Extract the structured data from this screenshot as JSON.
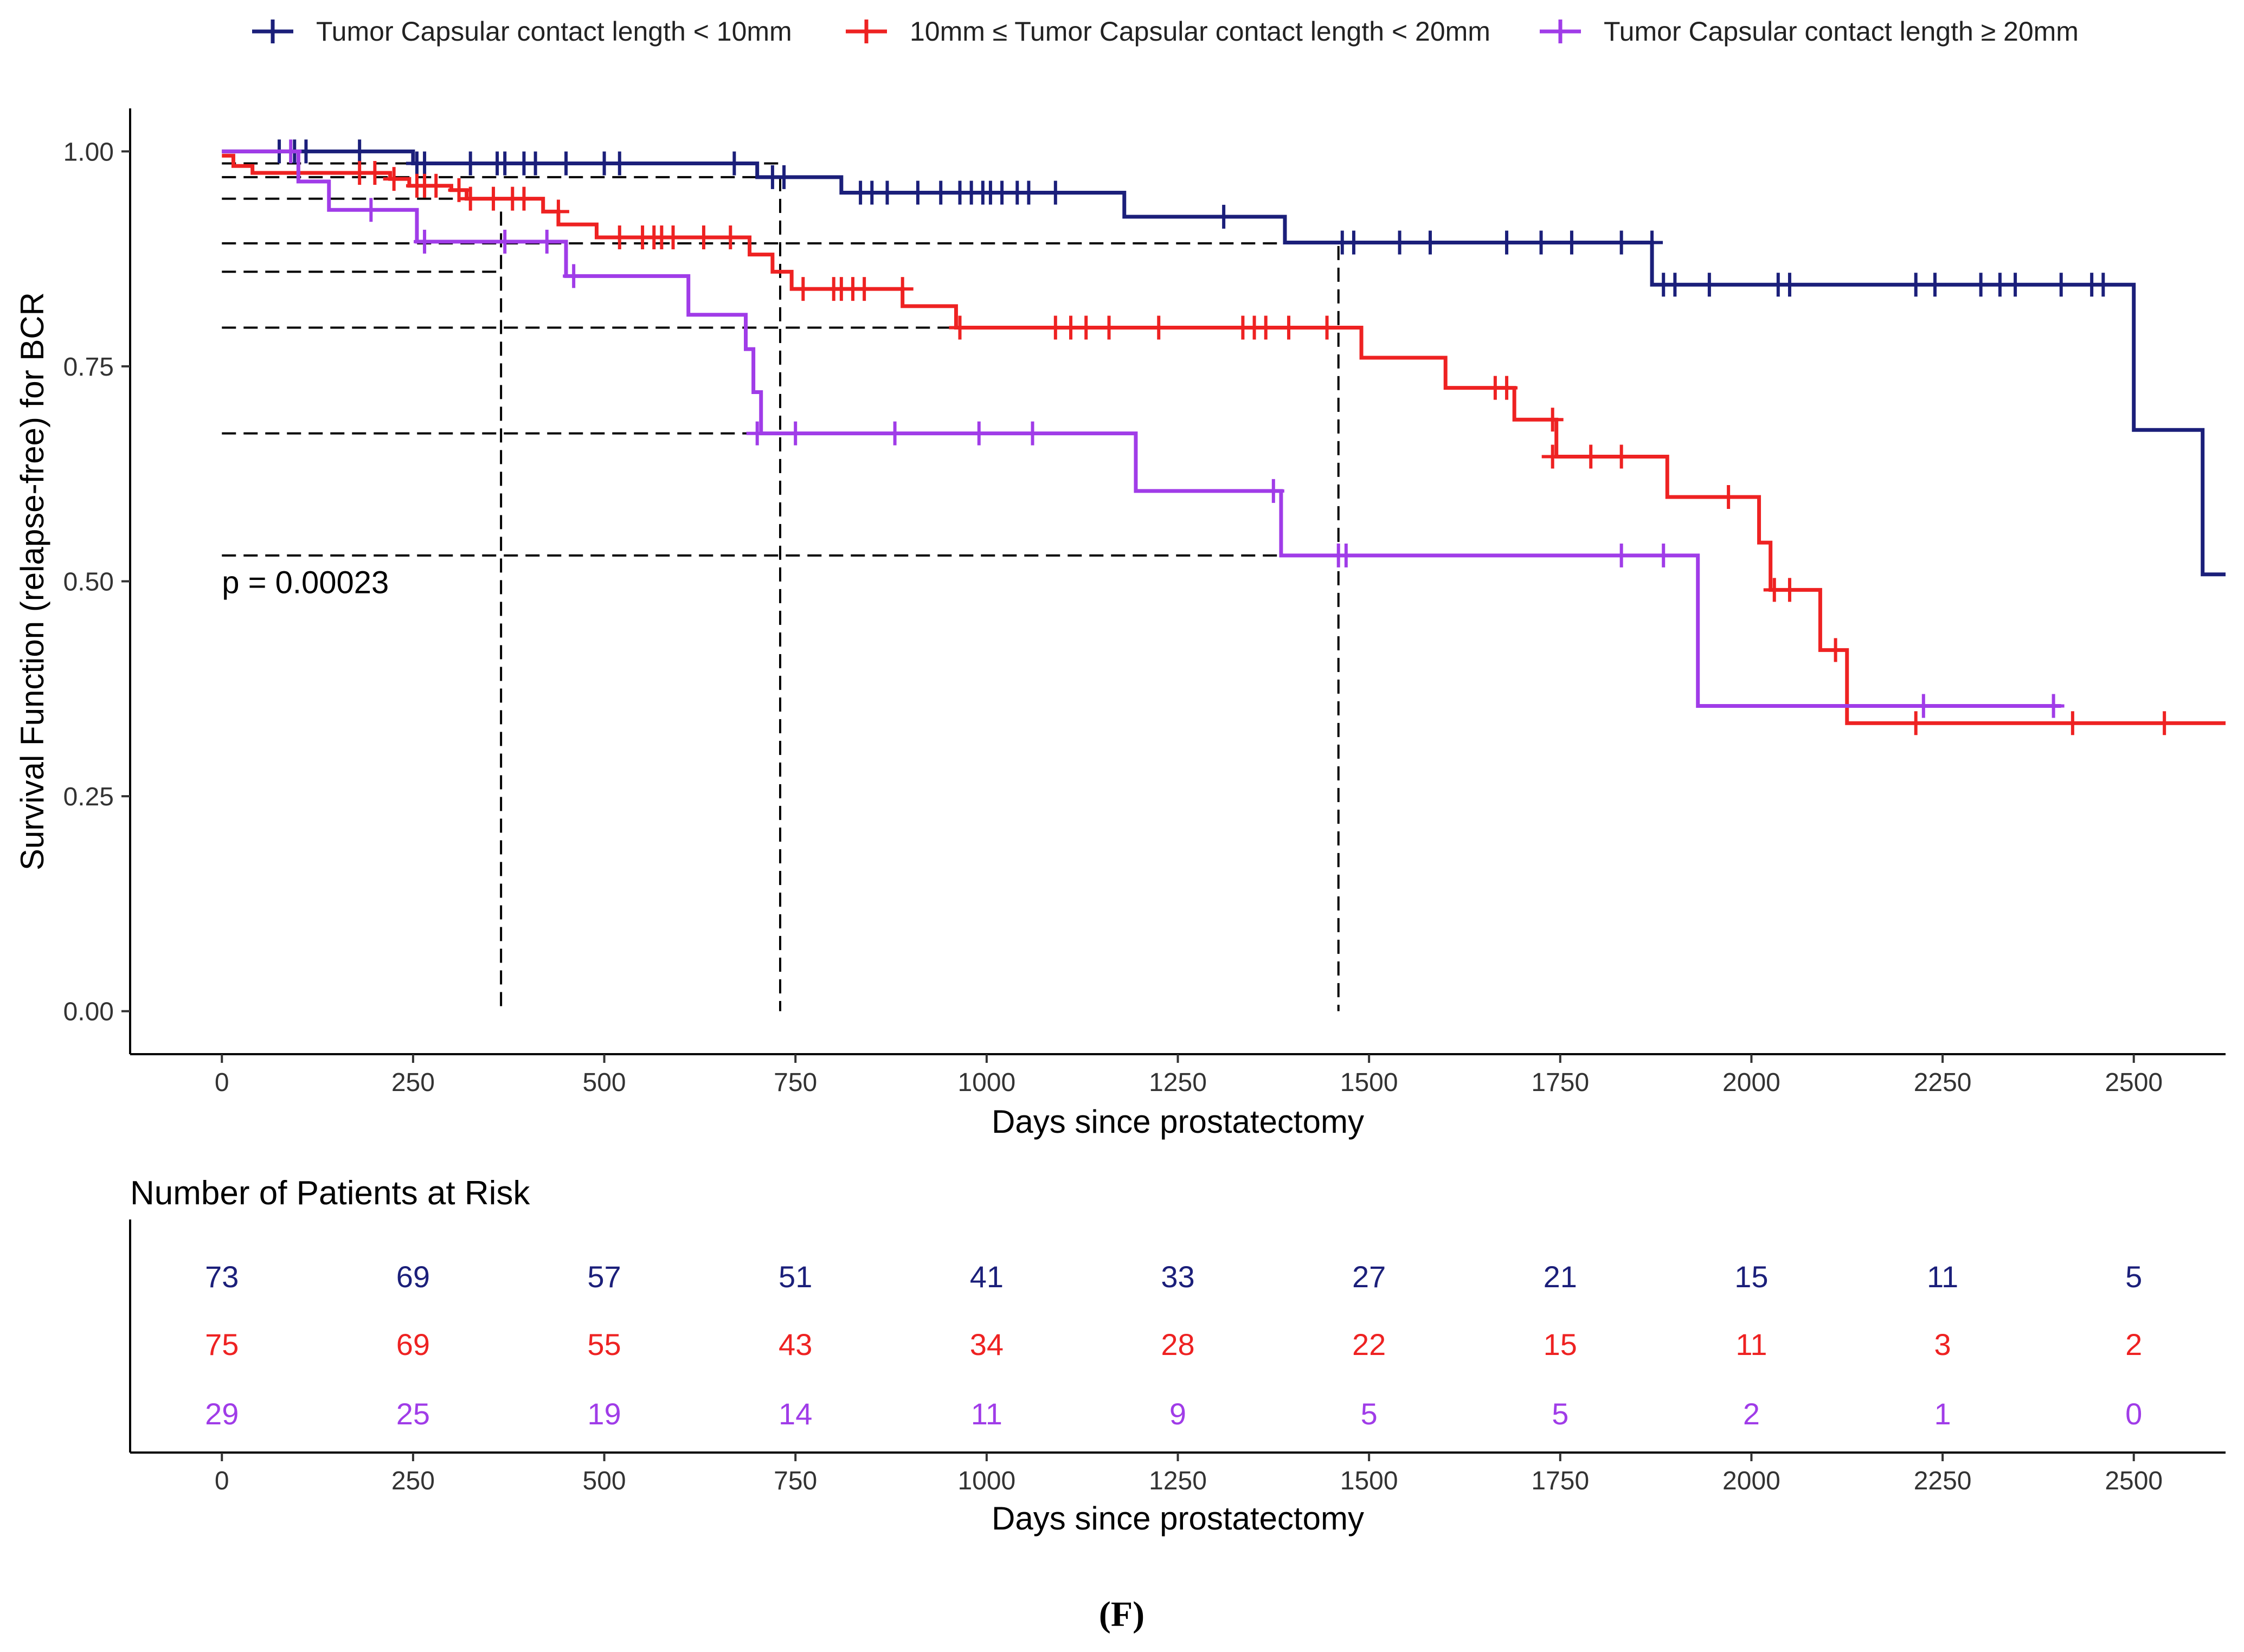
{
  "chart_data": [
    {
      "type": "line",
      "subtype": "kaplan-meier",
      "title": "",
      "xlabel": "Days since prostatectomy",
      "ylabel": "Survival Function (relapse-free) for BCR",
      "xlim": [
        -120,
        2620
      ],
      "ylim": [
        -0.05,
        1.05
      ],
      "x_ticks": [
        0,
        250,
        500,
        750,
        1000,
        1250,
        1500,
        1750,
        2000,
        2250,
        2500
      ],
      "y_ticks": [
        0.0,
        0.25,
        0.5,
        0.75,
        1.0
      ],
      "y_tick_labels": [
        "0.00",
        "0.25",
        "0.50",
        "0.75",
        "1.00"
      ],
      "grid": false,
      "legend_position": "top",
      "annotation": "p = 0.00023",
      "reference_lines": {
        "vertical_x": [
          365,
          730,
          1460
        ],
        "horizontal_y": [
          0.986,
          0.97,
          0.945,
          0.893,
          0.86,
          0.795,
          0.672,
          0.53
        ]
      },
      "series": [
        {
          "name": "Tumor Capsular contact length < 10mm",
          "color": "#1b1f7a",
          "steps": [
            [
              0,
              1.0
            ],
            [
              250,
              0.986
            ],
            [
              700,
              0.97
            ],
            [
              810,
              0.952
            ],
            [
              1180,
              0.924
            ],
            [
              1390,
              0.894
            ],
            [
              1870,
              0.845
            ],
            [
              2500,
              0.676
            ],
            [
              2590,
              0.508
            ],
            [
              2620,
              0.508
            ]
          ],
          "censored": [
            [
              75,
              1.0
            ],
            [
              95,
              1.0
            ],
            [
              110,
              1.0
            ],
            [
              180,
              1.0
            ],
            [
              255,
              0.986
            ],
            [
              265,
              0.986
            ],
            [
              325,
              0.986
            ],
            [
              360,
              0.986
            ],
            [
              370,
              0.986
            ],
            [
              395,
              0.986
            ],
            [
              410,
              0.986
            ],
            [
              450,
              0.986
            ],
            [
              500,
              0.986
            ],
            [
              520,
              0.986
            ],
            [
              670,
              0.986
            ],
            [
              720,
              0.97
            ],
            [
              735,
              0.97
            ],
            [
              835,
              0.952
            ],
            [
              850,
              0.952
            ],
            [
              870,
              0.952
            ],
            [
              910,
              0.952
            ],
            [
              940,
              0.952
            ],
            [
              965,
              0.952
            ],
            [
              980,
              0.952
            ],
            [
              995,
              0.952
            ],
            [
              1005,
              0.952
            ],
            [
              1020,
              0.952
            ],
            [
              1040,
              0.952
            ],
            [
              1055,
              0.952
            ],
            [
              1090,
              0.952
            ],
            [
              1310,
              0.924
            ],
            [
              1465,
              0.894
            ],
            [
              1480,
              0.894
            ],
            [
              1540,
              0.894
            ],
            [
              1580,
              0.894
            ],
            [
              1680,
              0.894
            ],
            [
              1725,
              0.894
            ],
            [
              1765,
              0.894
            ],
            [
              1830,
              0.894
            ],
            [
              1870,
              0.894
            ],
            [
              1885,
              0.845
            ],
            [
              1900,
              0.845
            ],
            [
              1945,
              0.845
            ],
            [
              2035,
              0.845
            ],
            [
              2050,
              0.845
            ],
            [
              2215,
              0.845
            ],
            [
              2240,
              0.845
            ],
            [
              2300,
              0.845
            ],
            [
              2325,
              0.845
            ],
            [
              2345,
              0.845
            ],
            [
              2405,
              0.845
            ],
            [
              2445,
              0.845
            ],
            [
              2460,
              0.845
            ]
          ]
        },
        {
          "name": "10mm ≤ Tumor Capsular contact length < 20mm",
          "color": "#ee2222",
          "steps": [
            [
              0,
              0.995
            ],
            [
              15,
              0.983
            ],
            [
              40,
              0.975
            ],
            [
              220,
              0.968
            ],
            [
              245,
              0.96
            ],
            [
              300,
              0.955
            ],
            [
              320,
              0.945
            ],
            [
              420,
              0.93
            ],
            [
              440,
              0.915
            ],
            [
              490,
              0.9
            ],
            [
              690,
              0.88
            ],
            [
              720,
              0.86
            ],
            [
              745,
              0.84
            ],
            [
              890,
              0.82
            ],
            [
              960,
              0.795
            ],
            [
              1490,
              0.76
            ],
            [
              1600,
              0.725
            ],
            [
              1690,
              0.688
            ],
            [
              1745,
              0.645
            ],
            [
              1890,
              0.598
            ],
            [
              2010,
              0.545
            ],
            [
              2025,
              0.49
            ],
            [
              2090,
              0.42
            ],
            [
              2125,
              0.335
            ],
            [
              2620,
              0.335
            ]
          ],
          "censored": [
            [
              180,
              0.975
            ],
            [
              200,
              0.975
            ],
            [
              225,
              0.968
            ],
            [
              255,
              0.96
            ],
            [
              265,
              0.96
            ],
            [
              280,
              0.96
            ],
            [
              310,
              0.955
            ],
            [
              325,
              0.945
            ],
            [
              355,
              0.945
            ],
            [
              380,
              0.945
            ],
            [
              395,
              0.945
            ],
            [
              440,
              0.93
            ],
            [
              520,
              0.9
            ],
            [
              550,
              0.9
            ],
            [
              565,
              0.9
            ],
            [
              575,
              0.9
            ],
            [
              590,
              0.9
            ],
            [
              630,
              0.9
            ],
            [
              665,
              0.9
            ],
            [
              760,
              0.84
            ],
            [
              800,
              0.84
            ],
            [
              810,
              0.84
            ],
            [
              825,
              0.84
            ],
            [
              840,
              0.84
            ],
            [
              890,
              0.84
            ],
            [
              965,
              0.795
            ],
            [
              1090,
              0.795
            ],
            [
              1110,
              0.795
            ],
            [
              1130,
              0.795
            ],
            [
              1160,
              0.795
            ],
            [
              1225,
              0.795
            ],
            [
              1335,
              0.795
            ],
            [
              1350,
              0.795
            ],
            [
              1365,
              0.795
            ],
            [
              1395,
              0.795
            ],
            [
              1445,
              0.795
            ],
            [
              1665,
              0.725
            ],
            [
              1680,
              0.725
            ],
            [
              1740,
              0.688
            ],
            [
              1740,
              0.645
            ],
            [
              1790,
              0.645
            ],
            [
              1830,
              0.645
            ],
            [
              1970,
              0.598
            ],
            [
              2030,
              0.49
            ],
            [
              2050,
              0.49
            ],
            [
              2110,
              0.42
            ],
            [
              2215,
              0.335
            ],
            [
              2420,
              0.335
            ],
            [
              2540,
              0.335
            ]
          ]
        },
        {
          "name": "Tumor Capsular contact length ≥ 20mm",
          "color": "#a03ce8",
          "steps": [
            [
              0,
              1.0
            ],
            [
              100,
              0.965
            ],
            [
              140,
              0.932
            ],
            [
              255,
              0.895
            ],
            [
              450,
              0.855
            ],
            [
              610,
              0.81
            ],
            [
              685,
              0.77
            ],
            [
              695,
              0.72
            ],
            [
              705,
              0.672
            ],
            [
              1195,
              0.605
            ],
            [
              1385,
              0.53
            ],
            [
              1930,
              0.355
            ],
            [
              2405,
              0.355
            ]
          ],
          "censored": [
            [
              90,
              1.0
            ],
            [
              195,
              0.932
            ],
            [
              265,
              0.895
            ],
            [
              370,
              0.895
            ],
            [
              425,
              0.895
            ],
            [
              460,
              0.855
            ],
            [
              700,
              0.672
            ],
            [
              750,
              0.672
            ],
            [
              880,
              0.672
            ],
            [
              990,
              0.672
            ],
            [
              1060,
              0.672
            ],
            [
              1375,
              0.605
            ],
            [
              1460,
              0.53
            ],
            [
              1470,
              0.53
            ],
            [
              1830,
              0.53
            ],
            [
              1885,
              0.53
            ],
            [
              2225,
              0.355
            ],
            [
              2395,
              0.355
            ]
          ]
        }
      ]
    },
    {
      "type": "table",
      "title": "Number of Patients at Risk",
      "xlabel": "Days since prostatectomy",
      "x_ticks": [
        0,
        250,
        500,
        750,
        1000,
        1250,
        1500,
        1750,
        2000,
        2250,
        2500
      ],
      "rows": [
        {
          "series": "Tumor Capsular contact length < 10mm",
          "color": "#1b1f7a",
          "values": [
            73,
            69,
            57,
            51,
            41,
            33,
            27,
            21,
            15,
            11,
            5
          ]
        },
        {
          "series": "10mm ≤ Tumor Capsular contact length < 20mm",
          "color": "#ee2222",
          "values": [
            75,
            69,
            55,
            43,
            34,
            28,
            22,
            15,
            11,
            3,
            2
          ]
        },
        {
          "series": "Tumor Capsular contact length ≥ 20mm",
          "color": "#a03ce8",
          "values": [
            29,
            25,
            19,
            14,
            11,
            9,
            5,
            5,
            2,
            1,
            0
          ]
        }
      ]
    }
  ],
  "caption": "(F)"
}
